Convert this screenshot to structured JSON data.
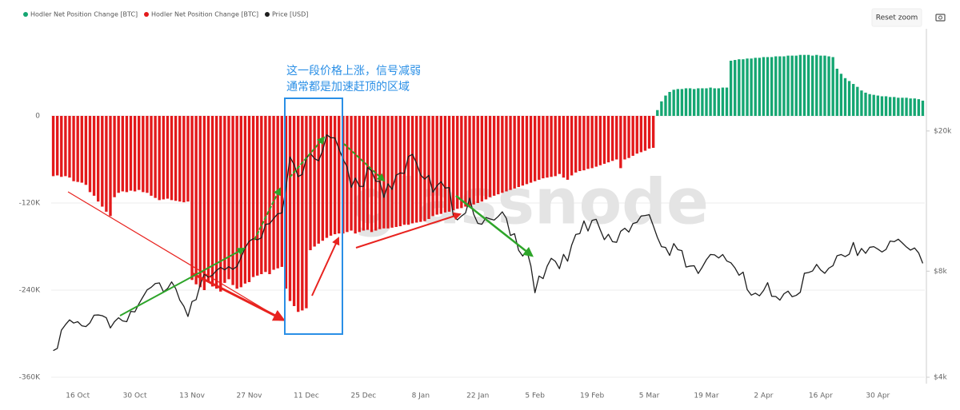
{
  "chart_data": {
    "type": "bar",
    "legend": "top-left",
    "grid": true,
    "watermark": "glassnode",
    "annotations": [
      "这一段价格上涨，信号减弱",
      "通常都是加速赶顶的区域"
    ],
    "categories": [
      null,
      null,
      null,
      null,
      null,
      null,
      "16 Oct",
      null,
      null,
      null,
      null,
      null,
      null,
      null,
      null,
      null,
      null,
      null,
      null,
      null,
      "30 Oct",
      null,
      null,
      null,
      null,
      null,
      null,
      null,
      null,
      null,
      null,
      null,
      null,
      null,
      "13 Nov",
      null,
      null,
      null,
      null,
      null,
      null,
      null,
      null,
      null,
      null,
      null,
      null,
      null,
      "27 Nov",
      null,
      null,
      null,
      null,
      null,
      null,
      null,
      null,
      null,
      null,
      null,
      null,
      null,
      "11 Dec",
      null,
      null,
      null,
      null,
      null,
      null,
      null,
      null,
      null,
      null,
      null,
      null,
      null,
      "25 Dec",
      null,
      null,
      null,
      null,
      null,
      null,
      null,
      null,
      null,
      null,
      null,
      null,
      null,
      "8 Jan",
      null,
      null,
      null,
      null,
      null,
      null,
      null,
      null,
      null,
      null,
      null,
      null,
      null,
      "22 Jan",
      null,
      null,
      null,
      null,
      null,
      null,
      null,
      null,
      null,
      null,
      null,
      null,
      null,
      "5 Feb",
      null,
      null,
      null,
      null,
      null,
      null,
      null,
      null,
      null,
      null,
      null,
      null,
      null,
      "19 Feb",
      null,
      null,
      null,
      null,
      null,
      null,
      null,
      null,
      null,
      null,
      null,
      null,
      null,
      "5 Mar",
      null,
      null,
      null,
      null,
      null,
      null,
      null,
      null,
      null,
      null,
      null,
      null,
      null,
      "19 Mar",
      null,
      null,
      null,
      null,
      null,
      null,
      null,
      null,
      null,
      null,
      null,
      null,
      null,
      "2 Apr",
      null,
      null,
      null,
      null,
      null,
      null,
      null,
      null,
      null,
      null,
      null,
      null,
      null,
      "16 Apr",
      null,
      null,
      null,
      null,
      null,
      null,
      null,
      null,
      null,
      null,
      null,
      null,
      null,
      "30 Apr",
      null,
      null,
      null,
      null,
      null,
      null,
      null,
      null,
      null,
      null,
      null
    ],
    "ylim": [
      -360000,
      120000
    ],
    "yticks": [
      {
        "value": -360000,
        "label": "-360K"
      },
      {
        "value": -240000,
        "label": "-240K"
      },
      {
        "value": -120000,
        "label": "-120K"
      },
      0
    ],
    "y2lim": [
      4000,
      39000
    ],
    "y2scale": "log",
    "y2ticks": [
      {
        "value": 4000,
        "label": "$4k"
      },
      {
        "value": 8000,
        "label": "$8k"
      },
      {
        "value": 20000,
        "label": "$20k"
      }
    ],
    "series": [
      {
        "name": "Hodler Net Position Change [BTC]",
        "color": "#15a672",
        "values": [
          null,
          null,
          null,
          null,
          null,
          null,
          null,
          null,
          null,
          null,
          null,
          null,
          null,
          null,
          null,
          null,
          null,
          null,
          null,
          null,
          null,
          null,
          null,
          null,
          null,
          null,
          null,
          null,
          null,
          null,
          null,
          null,
          null,
          null,
          null,
          null,
          null,
          null,
          null,
          null,
          null,
          null,
          null,
          null,
          null,
          null,
          null,
          null,
          null,
          null,
          null,
          null,
          null,
          null,
          null,
          null,
          null,
          null,
          null,
          null,
          null,
          null,
          null,
          null,
          null,
          null,
          null,
          null,
          null,
          null,
          null,
          null,
          null,
          null,
          null,
          null,
          null,
          null,
          null,
          null,
          null,
          null,
          null,
          null,
          null,
          null,
          null,
          null,
          null,
          null,
          null,
          null,
          null,
          null,
          null,
          null,
          null,
          null,
          null,
          null,
          null,
          null,
          null,
          null,
          null,
          null,
          null,
          null,
          null,
          null,
          null,
          null,
          null,
          null,
          null,
          null,
          null,
          null,
          null,
          null,
          null,
          null,
          null,
          null,
          null,
          null,
          null,
          null,
          null,
          null,
          null,
          null,
          null,
          null,
          null,
          null,
          null,
          null,
          null,
          null,
          null,
          null,
          null,
          null,
          null,
          null,
          null,
          null,
          8000,
          20000,
          28000,
          33000,
          36000,
          37000,
          37000,
          38000,
          38000,
          37000,
          38000,
          38000,
          38000,
          39000,
          38000,
          38000,
          39000,
          39000,
          76000,
          77000,
          78000,
          78000,
          79000,
          79000,
          80000,
          80000,
          81000,
          81000,
          81000,
          82000,
          82000,
          82000,
          83000,
          83000,
          83000,
          84000,
          84000,
          84000,
          83000,
          84000,
          83000,
          83000,
          82000,
          81000,
          65000,
          58000,
          52000,
          48000,
          44000,
          40000,
          35000,
          32000,
          30000,
          29000,
          28000,
          27000,
          27000,
          26000,
          26000,
          25000,
          25000,
          25000,
          24000,
          24000,
          23000,
          21000
        ]
      },
      {
        "name": "Hodler Net Position Change [BTC]",
        "color": "#e3191b",
        "values": [
          -83000,
          -82000,
          -84000,
          -83000,
          -85000,
          -90000,
          -91000,
          -92000,
          -95000,
          -105000,
          -110000,
          -118000,
          -125000,
          -132000,
          -138000,
          -112000,
          -106000,
          -104000,
          -105000,
          -103000,
          -104000,
          -102000,
          -105000,
          -106000,
          -110000,
          -113000,
          -116000,
          -115000,
          -114000,
          -116000,
          -117000,
          -118000,
          -119000,
          -118000,
          -226000,
          -232000,
          -236000,
          -240000,
          -228000,
          -235000,
          -238000,
          -242000,
          -230000,
          -225000,
          -233000,
          -238000,
          -236000,
          -231000,
          -229000,
          -222000,
          -220000,
          -218000,
          -215000,
          -218000,
          -212000,
          -210000,
          -208000,
          -238000,
          -255000,
          -262000,
          -270000,
          -268000,
          -265000,
          -185000,
          -180000,
          -176000,
          -172000,
          -168000,
          -165000,
          -163000,
          -162000,
          -162000,
          -160000,
          -158000,
          -162000,
          -160000,
          -158000,
          -157000,
          -160000,
          -158000,
          -156000,
          -155000,
          -155000,
          -154000,
          -153000,
          -152000,
          -150000,
          -150000,
          -148000,
          -147000,
          -146000,
          -145000,
          -142000,
          -138000,
          -136000,
          -135000,
          -133000,
          -132000,
          -130000,
          -128000,
          -127000,
          -125000,
          -124000,
          -122000,
          -120000,
          -118000,
          -115000,
          -112000,
          -110000,
          -108000,
          -106000,
          -104000,
          -102000,
          -100000,
          -98000,
          -96000,
          -94000,
          -92000,
          -90000,
          -88000,
          -86000,
          -85000,
          -84000,
          -83000,
          -80000,
          -85000,
          -88000,
          -82000,
          -78000,
          -76000,
          -75000,
          -73000,
          -72000,
          -70000,
          -68000,
          -66000,
          -64000,
          -62000,
          -60000,
          -72000,
          -60000,
          -58000,
          -55000,
          -52000,
          -50000,
          -48000,
          -45000,
          -44000,
          null,
          null,
          null,
          null,
          null,
          null,
          null,
          null,
          null,
          null,
          null,
          null,
          null,
          null,
          null,
          null,
          null,
          null,
          null,
          null,
          null,
          null,
          null,
          null,
          null,
          null,
          null,
          null,
          null,
          null,
          null,
          null,
          null,
          null,
          null,
          null,
          null,
          null,
          null,
          null,
          null,
          null,
          null,
          null,
          null,
          null,
          null,
          null,
          null,
          null,
          null,
          null,
          null,
          null,
          null,
          null,
          null,
          null,
          null,
          null,
          null,
          null,
          null,
          null,
          null,
          null
        ]
      },
      {
        "name": "Price [USD]",
        "color": "#1e1e1e",
        "type": "line",
        "axis": "y2",
        "values": [
          4760,
          4830,
          5440,
          5640,
          5820,
          5700,
          5750,
          5600,
          5570,
          5710,
          6000,
          6010,
          5980,
          5900,
          5520,
          5750,
          5900,
          5780,
          5750,
          6150,
          6130,
          6470,
          6770,
          7080,
          7200,
          7380,
          7410,
          6990,
          7140,
          7460,
          7140,
          6620,
          6360,
          5950,
          6560,
          6640,
          7320,
          7850,
          7700,
          7790,
          8040,
          8200,
          8070,
          8240,
          8100,
          8250,
          8750,
          9320,
          9730,
          9890,
          9820,
          9950,
          10860,
          10910,
          11290,
          11640,
          11700,
          13750,
          16870,
          16050,
          14840,
          15060,
          16730,
          17280,
          16690,
          16460,
          17600,
          19500,
          19140,
          19110,
          17780,
          16620,
          15800,
          13830,
          14700,
          13930,
          13920,
          15750,
          15400,
          14400,
          14380,
          12950,
          14160,
          13650,
          14980,
          15200,
          15150,
          16930,
          17170,
          16200,
          15000,
          14600,
          14970,
          13400,
          13980,
          14360,
          13770,
          13820,
          11490,
          11190,
          11470,
          11700,
          12900,
          11600,
          10930,
          10870,
          11360,
          11260,
          11170,
          11440,
          11790,
          11300,
          10100,
          10220,
          9170,
          8830,
          9170,
          8280,
          6950,
          7750,
          7620,
          8270,
          8700,
          8530,
          8130,
          8930,
          8540,
          9490,
          10170,
          10230,
          11110,
          10400,
          11150,
          11230,
          10480,
          9830,
          10180,
          9700,
          9660,
          10380,
          10590,
          10330,
          10920,
          11010,
          11470,
          11510,
          11570,
          10760,
          9970,
          9390,
          9340,
          8870,
          9580,
          9210,
          9150,
          8220,
          8270,
          8290,
          7880,
          8220,
          8620,
          8920,
          8900,
          8720,
          8920,
          8550,
          8450,
          8170,
          7790,
          7950,
          7090,
          6840,
          6930,
          6810,
          7050,
          7420,
          6790,
          6780,
          6620,
          6900,
          7020,
          6770,
          6830,
          6970,
          7890,
          7930,
          8010,
          8360,
          8060,
          7890,
          8160,
          8290,
          8850,
          8920,
          8800,
          8940,
          9650,
          8860,
          9280,
          8990,
          9350,
          9390,
          9240,
          9070,
          9220,
          9740,
          9700,
          9860,
          9620,
          9370,
          9180,
          9310,
          9010,
          8420
        ]
      }
    ]
  },
  "toolbar": {
    "reset_zoom": "Reset zoom"
  }
}
